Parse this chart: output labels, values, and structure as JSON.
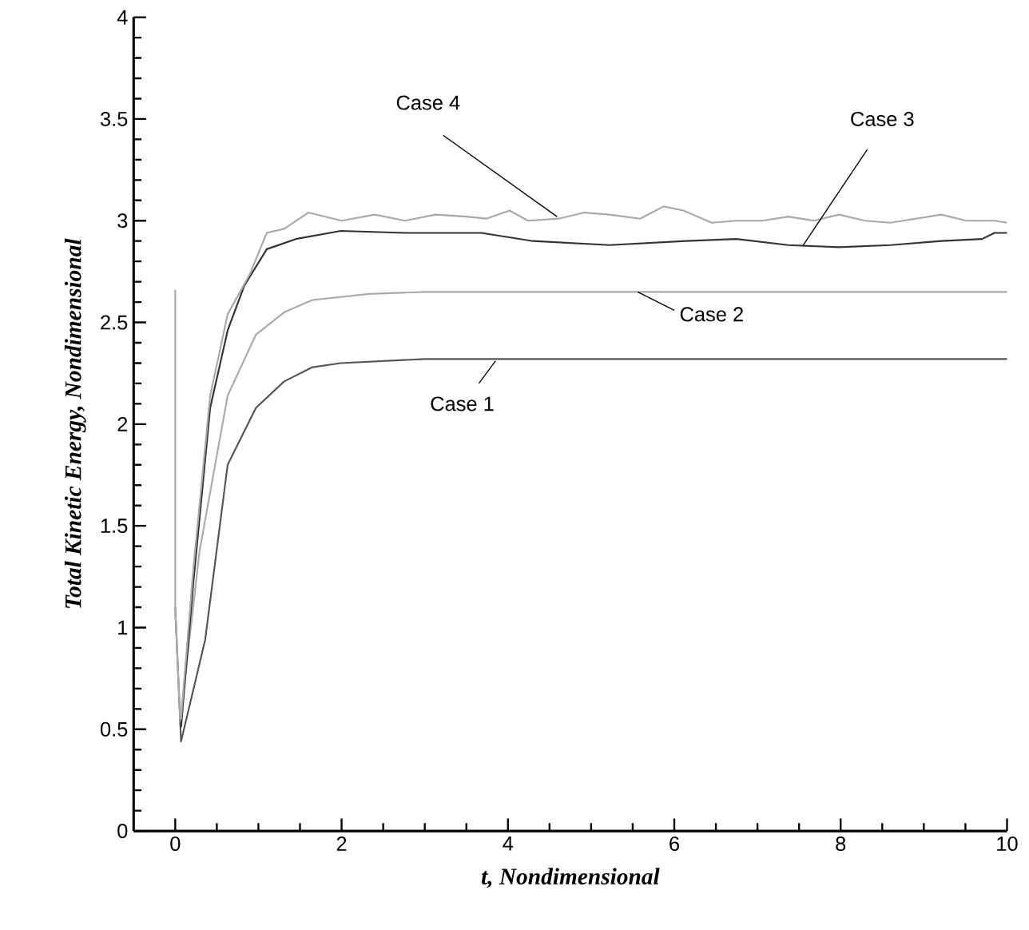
{
  "chart_data": {
    "type": "line",
    "xlabel": "t, Nondimensional",
    "ylabel": "Total Kinetic Energy, Nondimensional",
    "xlim": [
      -0.5,
      10
    ],
    "ylim": [
      0,
      4
    ],
    "xticks": [
      0,
      2,
      4,
      6,
      8,
      10
    ],
    "yticks": [
      0,
      0.5,
      1,
      1.5,
      2,
      2.5,
      3,
      3.5,
      4
    ],
    "series": [
      {
        "name": "Case 1",
        "color": "#555555",
        "x": [
          0,
          0.07,
          0.36,
          0.63,
          0.97,
          1.31,
          1.65,
          1.99,
          3,
          10
        ],
        "values": [
          1.1,
          0.44,
          0.94,
          1.8,
          2.08,
          2.21,
          2.28,
          2.3,
          2.32,
          2.32
        ]
      },
      {
        "name": "Case 2",
        "color": "#aaaaaa",
        "x": [
          0,
          0,
          0.06,
          0.29,
          0.63,
          0.97,
          1.31,
          1.65,
          2.33,
          3,
          10
        ],
        "values": [
          2.66,
          1.1,
          0.54,
          1.37,
          2.14,
          2.44,
          2.55,
          2.61,
          2.64,
          2.65,
          2.65
        ]
      },
      {
        "name": "Case 3",
        "color": "#333333",
        "x": [
          0.07,
          0.22,
          0.42,
          0.63,
          0.83,
          1.1,
          1.45,
          1.99,
          2.76,
          3.68,
          4.3,
          5.22,
          6.14,
          6.75,
          7.37,
          7.98,
          8.6,
          9.21,
          9.7,
          9.85,
          10
        ],
        "values": [
          0.51,
          1.23,
          2.08,
          2.46,
          2.68,
          2.86,
          2.91,
          2.95,
          2.94,
          2.94,
          2.9,
          2.88,
          2.9,
          2.91,
          2.88,
          2.87,
          2.88,
          2.9,
          2.91,
          2.94,
          2.94
        ]
      },
      {
        "name": "Case 4",
        "color": "#a8a8a8",
        "x": [
          0.07,
          0.22,
          0.42,
          0.63,
          0.9,
          1.1,
          1.31,
          1.6,
          2.0,
          2.4,
          2.76,
          3.13,
          3.5,
          3.74,
          4.02,
          4.24,
          4.61,
          4.92,
          5.22,
          5.59,
          5.87,
          6.11,
          6.45,
          6.75,
          7.06,
          7.37,
          7.68,
          7.98,
          8.29,
          8.6,
          9.21,
          9.51,
          9.85,
          10
        ],
        "values": [
          0.55,
          1.3,
          2.14,
          2.54,
          2.74,
          2.94,
          2.96,
          3.04,
          3.0,
          3.03,
          3.0,
          3.03,
          3.02,
          3.01,
          3.05,
          3.0,
          3.01,
          3.04,
          3.03,
          3.01,
          3.07,
          3.05,
          2.99,
          3.0,
          3.0,
          3.02,
          3.0,
          3.03,
          3.0,
          2.99,
          3.03,
          3.0,
          3.0,
          2.99
        ]
      }
    ]
  }
}
